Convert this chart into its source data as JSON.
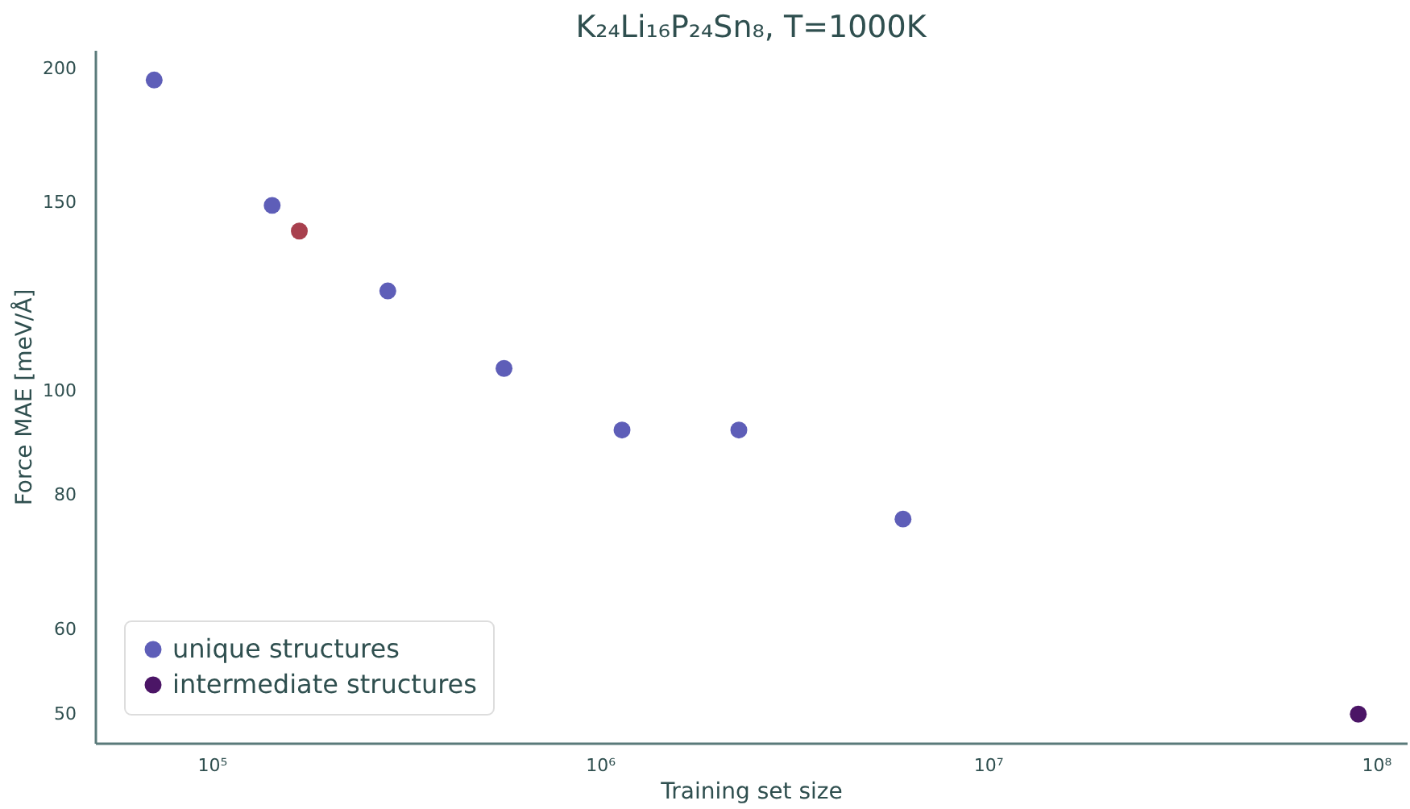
{
  "chart_data": {
    "type": "scatter",
    "title": "K₂₄Li₁₆P₂₄Sn₈, T=1000K",
    "xlabel": "Training set size",
    "ylabel": "Force MAE [meV/Å]",
    "log": "xy",
    "grid": false,
    "legend": "bottom left",
    "marker": "circle",
    "xlim": [
      50000,
      120000000
    ],
    "ylim": [
      47,
      208
    ],
    "xticks": [
      {
        "value": 100000,
        "label": "10⁵"
      },
      {
        "value": 1000000,
        "label": "10⁶"
      },
      {
        "value": 10000000,
        "label": "10⁷"
      },
      {
        "value": 100000000,
        "label": "10⁸"
      }
    ],
    "yticks": [
      50,
      60,
      80,
      100,
      150,
      200
    ],
    "series": [
      {
        "color": "#a8404e",
        "x": [
          168000
        ],
        "values": [
          141
        ]
      },
      {
        "name": "unique structures",
        "color": "#5e5eb8",
        "x": [
          71000,
          143000,
          284000,
          566000,
          1140000,
          2280000,
          6040000
        ],
        "values": [
          195,
          149,
          124,
          105,
          92,
          92,
          76
        ]
      },
      {
        "name": "intermediate structures",
        "color": "#4b1566",
        "x": [
          90000000
        ],
        "values": [
          50
        ]
      }
    ]
  }
}
